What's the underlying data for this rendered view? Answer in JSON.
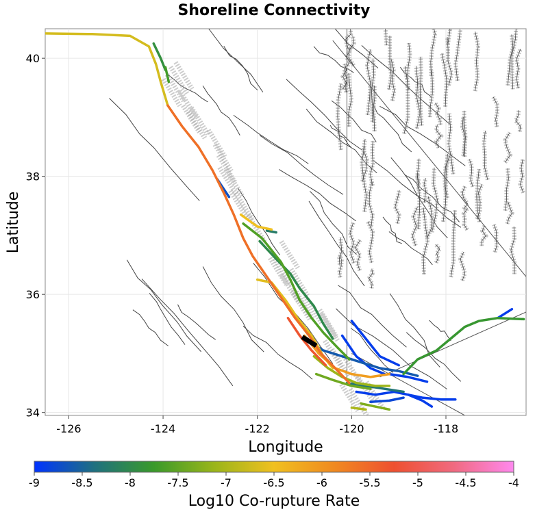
{
  "chart_data": {
    "type": "map",
    "title": "Shoreline Connectivity",
    "xlabel": "Longitude",
    "ylabel": "Latitude",
    "xlim": [
      -126.5,
      -116.3
    ],
    "ylim": [
      33.95,
      40.5
    ],
    "xticks": [
      -126,
      -124,
      -122,
      -120,
      -118
    ],
    "yticks": [
      34,
      36,
      38,
      40
    ],
    "grid": true,
    "colorbar": {
      "label": "Log10 Co-rupture Rate",
      "range": [
        -9,
        -4
      ],
      "ticks": [
        "-9",
        "-8.5",
        "-8",
        "-7.5",
        "-7",
        "-6.5",
        "-6",
        "-5.5",
        "-5",
        "-4.5",
        "-4"
      ],
      "stops": [
        "#0033ff",
        "#1f7080",
        "#3a9a2a",
        "#9ab51a",
        "#f0c020",
        "#f08a20",
        "#ee5030",
        "#f06a80",
        "#ff88ee"
      ],
      "placement": "bottom"
    },
    "background_fault_color": "#444444",
    "background_fault_surface_color": "#aaaaaa",
    "highlight_color": "#000000",
    "series": [
      {
        "rate": -6.7,
        "points": [
          [
            -126.5,
            40.42
          ],
          [
            -125.5,
            40.41
          ],
          [
            -124.7,
            40.38
          ],
          [
            -124.3,
            40.2
          ],
          [
            -124.15,
            39.9
          ],
          [
            -124.05,
            39.6
          ],
          [
            -123.9,
            39.2
          ]
        ]
      },
      {
        "rate": -7.9,
        "points": [
          [
            -124.2,
            40.25
          ],
          [
            -124.05,
            40.0
          ],
          [
            -123.95,
            39.8
          ]
        ]
      },
      {
        "rate": -7.7,
        "points": [
          [
            -123.95,
            39.85
          ],
          [
            -123.88,
            39.6
          ]
        ]
      },
      {
        "rate": -5.6,
        "points": [
          [
            -123.9,
            39.2
          ],
          [
            -123.6,
            38.85
          ],
          [
            -123.25,
            38.5
          ],
          [
            -122.95,
            38.1
          ],
          [
            -122.7,
            37.7
          ],
          [
            -122.5,
            37.35
          ],
          [
            -122.3,
            36.95
          ],
          [
            -122.1,
            36.65
          ],
          [
            -121.8,
            36.3
          ],
          [
            -121.5,
            35.95
          ],
          [
            -121.2,
            35.6
          ],
          [
            -120.9,
            35.3
          ],
          [
            -120.65,
            35.0
          ],
          [
            -120.35,
            34.75
          ],
          [
            -120.05,
            34.5
          ]
        ]
      },
      {
        "rate": -8.7,
        "points": [
          [
            -122.85,
            37.95
          ],
          [
            -122.6,
            37.65
          ]
        ]
      },
      {
        "rate": -6.5,
        "points": [
          [
            -122.35,
            37.35
          ],
          [
            -122.0,
            37.15
          ],
          [
            -121.7,
            37.1
          ]
        ]
      },
      {
        "rate": -8.2,
        "points": [
          [
            -121.8,
            37.08
          ],
          [
            -121.6,
            37.05
          ]
        ]
      },
      {
        "rate": -7.6,
        "points": [
          [
            -122.3,
            37.2
          ],
          [
            -121.9,
            36.95
          ],
          [
            -121.5,
            36.55
          ],
          [
            -121.3,
            36.25
          ],
          [
            -121.1,
            35.9
          ],
          [
            -120.85,
            35.6
          ],
          [
            -120.6,
            35.35
          ],
          [
            -120.3,
            35.1
          ],
          [
            -120.05,
            34.9
          ]
        ]
      },
      {
        "rate": -8.0,
        "points": [
          [
            -121.95,
            36.9
          ],
          [
            -121.6,
            36.6
          ],
          [
            -121.3,
            36.35
          ],
          [
            -121.1,
            36.1
          ],
          [
            -120.8,
            35.8
          ],
          [
            -120.6,
            35.5
          ],
          [
            -120.4,
            35.25
          ]
        ]
      },
      {
        "rate": -6.6,
        "points": [
          [
            -122.0,
            36.25
          ],
          [
            -121.7,
            36.2
          ],
          [
            -121.4,
            35.9
          ],
          [
            -121.15,
            35.6
          ],
          [
            -120.85,
            35.3
          ],
          [
            -120.6,
            34.95
          ],
          [
            -120.4,
            34.75
          ]
        ]
      },
      {
        "rate": -5.3,
        "points": [
          [
            -121.35,
            35.6
          ],
          [
            -121.1,
            35.3
          ],
          [
            -120.85,
            35.05
          ],
          [
            -120.55,
            34.8
          ]
        ]
      },
      {
        "rate": -6.1,
        "points": [
          [
            -121.0,
            35.3
          ],
          [
            -120.7,
            35.0
          ],
          [
            -120.35,
            34.75
          ],
          [
            -120.0,
            34.65
          ],
          [
            -119.6,
            34.6
          ],
          [
            -119.2,
            34.65
          ]
        ]
      },
      {
        "rate": -7.1,
        "points": [
          [
            -120.8,
            34.95
          ],
          [
            -120.5,
            34.75
          ],
          [
            -120.2,
            34.6
          ],
          [
            -119.9,
            34.5
          ],
          [
            -119.5,
            34.45
          ],
          [
            -119.2,
            34.45
          ]
        ]
      },
      {
        "rate": -7.4,
        "points": [
          [
            -120.75,
            34.65
          ],
          [
            -120.4,
            34.55
          ],
          [
            -120.0,
            34.45
          ],
          [
            -119.6,
            34.4
          ]
        ]
      },
      {
        "rate": -8.6,
        "points": [
          [
            -120.9,
            35.2
          ],
          [
            -120.6,
            35.05
          ],
          [
            -120.2,
            34.95
          ],
          [
            -119.8,
            34.85
          ],
          [
            -119.4,
            34.75
          ],
          [
            -119.0,
            34.7
          ],
          [
            -118.6,
            34.62
          ]
        ]
      },
      {
        "rate": -8.3,
        "points": [
          [
            -120.1,
            34.5
          ],
          [
            -119.7,
            34.45
          ],
          [
            -119.3,
            34.4
          ],
          [
            -118.9,
            34.35
          ]
        ]
      },
      {
        "rate": -8.9,
        "points": [
          [
            -120.2,
            35.3
          ],
          [
            -119.9,
            34.95
          ],
          [
            -119.6,
            34.75
          ],
          [
            -119.3,
            34.65
          ]
        ]
      },
      {
        "rate": -8.9,
        "points": [
          [
            -120.0,
            35.55
          ],
          [
            -119.7,
            35.25
          ],
          [
            -119.4,
            34.95
          ],
          [
            -119.0,
            34.8
          ]
        ]
      },
      {
        "rate": -8.9,
        "points": [
          [
            -119.2,
            34.65
          ],
          [
            -118.8,
            34.6
          ],
          [
            -118.4,
            34.52
          ]
        ]
      },
      {
        "rate": -8.9,
        "points": [
          [
            -119.9,
            34.35
          ],
          [
            -119.5,
            34.3
          ],
          [
            -119.1,
            34.35
          ],
          [
            -118.8,
            34.3
          ],
          [
            -118.5,
            34.25
          ],
          [
            -118.1,
            34.22
          ],
          [
            -117.8,
            34.22
          ]
        ]
      },
      {
        "rate": -8.8,
        "points": [
          [
            -119.6,
            34.18
          ],
          [
            -119.2,
            34.2
          ],
          [
            -118.9,
            34.25
          ]
        ]
      },
      {
        "rate": -8.9,
        "points": [
          [
            -118.8,
            34.3
          ],
          [
            -118.5,
            34.2
          ],
          [
            -118.3,
            34.1
          ]
        ]
      },
      {
        "rate": -7.3,
        "points": [
          [
            -119.8,
            34.15
          ],
          [
            -119.5,
            34.1
          ],
          [
            -119.2,
            34.05
          ]
        ]
      },
      {
        "rate": -7.0,
        "points": [
          [
            -120.0,
            34.08
          ],
          [
            -119.7,
            34.05
          ]
        ]
      },
      {
        "rate": -7.8,
        "points": [
          [
            -118.9,
            34.65
          ],
          [
            -118.6,
            34.9
          ],
          [
            -118.2,
            35.05
          ],
          [
            -117.9,
            35.25
          ],
          [
            -117.6,
            35.45
          ],
          [
            -117.3,
            35.55
          ],
          [
            -116.9,
            35.6
          ],
          [
            -116.35,
            35.58
          ]
        ]
      },
      {
        "rate": -8.9,
        "points": [
          [
            -116.9,
            35.6
          ],
          [
            -116.6,
            35.75
          ]
        ]
      }
    ],
    "highlight": {
      "points": [
        [
          -121.05,
          35.28
        ],
        [
          -120.75,
          35.13
        ]
      ]
    }
  }
}
